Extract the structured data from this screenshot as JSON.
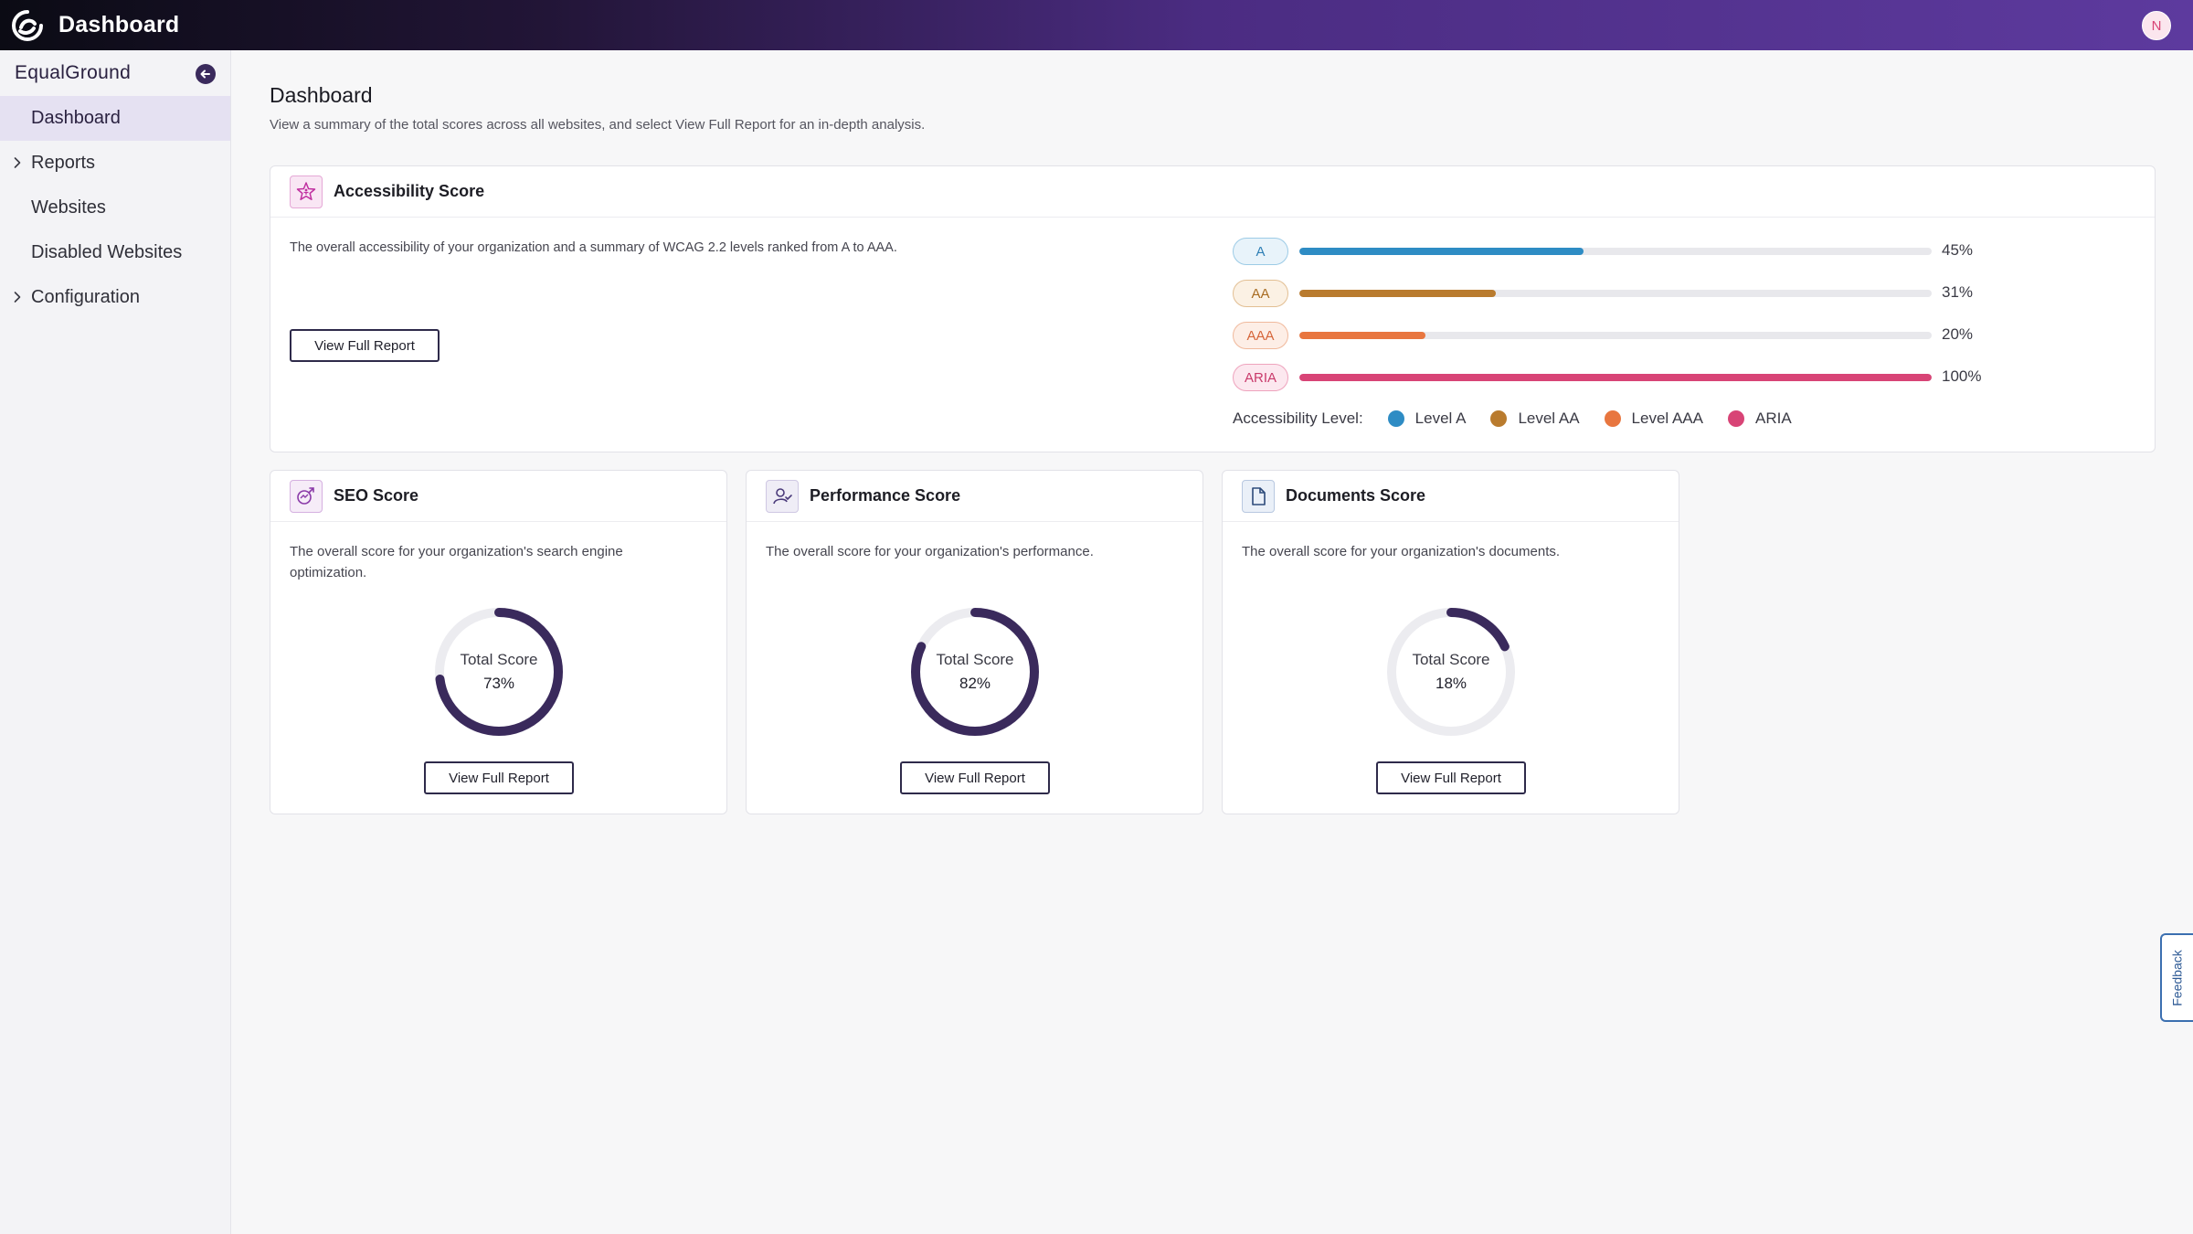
{
  "app": {
    "title": "Dashboard",
    "avatar_initial": "N"
  },
  "sidebar": {
    "org_name": "EqualGround",
    "items": [
      {
        "label": "Dashboard",
        "active": true,
        "expandable": false
      },
      {
        "label": "Reports",
        "active": false,
        "expandable": true
      },
      {
        "label": "Websites",
        "active": false,
        "expandable": false
      },
      {
        "label": "Disabled Websites",
        "active": false,
        "expandable": false
      },
      {
        "label": "Configuration",
        "active": false,
        "expandable": true
      }
    ]
  },
  "page": {
    "title": "Dashboard",
    "subtitle": "View a summary of the total scores across all websites, and select View Full Report for an in-depth analysis."
  },
  "accessibility": {
    "title": "Accessibility Score",
    "description": "The overall accessibility of your organization and a summary of WCAG 2.2 levels ranked from A to AAA.",
    "button": "View Full Report",
    "legend_label": "Accessibility Level:",
    "levels": [
      {
        "pill": "A",
        "percent_label": "45%",
        "value": 45,
        "legend": "Level A",
        "color": "#2e8cc4",
        "pill_bg": "#e8f3fa",
        "pill_border": "#9ccbe6",
        "pill_color": "#2e7fb5"
      },
      {
        "pill": "AA",
        "percent_label": "31%",
        "value": 31,
        "legend": "Level AA",
        "color": "#b97b2e",
        "pill_bg": "#fbf1e4",
        "pill_border": "#e2bf93",
        "pill_color": "#a86c22"
      },
      {
        "pill": "AAA",
        "percent_label": "20%",
        "value": 20,
        "legend": "Level AAA",
        "color": "#e8763f",
        "pill_bg": "#fdeee6",
        "pill_border": "#f0b99c",
        "pill_color": "#d6653a"
      },
      {
        "pill": "ARIA",
        "percent_label": "100%",
        "value": 100,
        "legend": "ARIA",
        "color": "#d84476",
        "pill_bg": "#fce8ef",
        "pill_border": "#eea3bd",
        "pill_color": "#c93a6b"
      }
    ]
  },
  "scores": [
    {
      "title": "SEO Score",
      "icon": "seo-icon",
      "description": "The overall score for your organization's search engine optimization.",
      "donut_label": "Total Score",
      "value_label": "73%",
      "value": 73,
      "button": "View Full Report"
    },
    {
      "title": "Performance Score",
      "icon": "performance-icon",
      "description": "The overall score for your organization's performance.",
      "donut_label": "Total Score",
      "value_label": "82%",
      "value": 82,
      "button": "View Full Report"
    },
    {
      "title": "Documents Score",
      "icon": "document-icon",
      "description": "The overall score for your organization's documents.",
      "donut_label": "Total Score",
      "value_label": "18%",
      "value": 18,
      "button": "View Full Report"
    }
  ],
  "colors": {
    "accent": "#3a2a5c",
    "donut_track": "#ececf0"
  },
  "feedback": {
    "label": "Feedback"
  }
}
